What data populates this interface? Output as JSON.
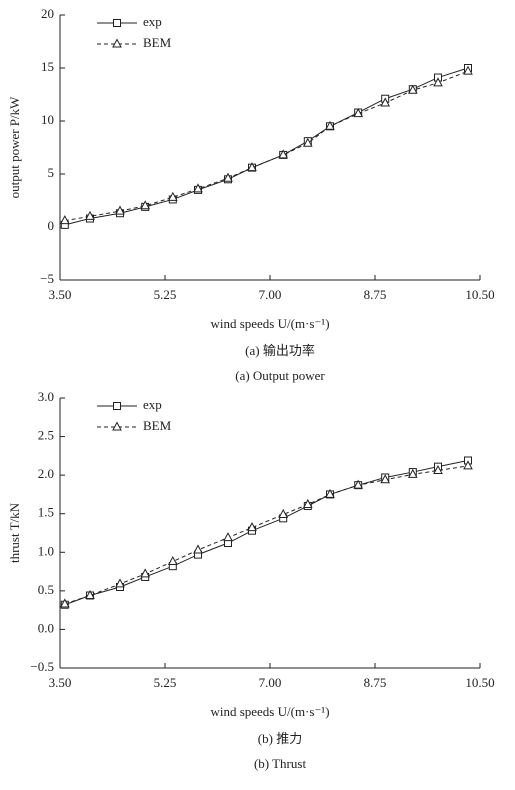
{
  "chart_data": [
    {
      "type": "line",
      "xlabel": "wind speeds U/(m·s⁻¹)",
      "ylabel": "output power P/kW",
      "caption_cn": "(a) 输出功率",
      "caption_en": "(a)  Output power",
      "x": [
        3.58,
        4.0,
        4.5,
        4.92,
        5.38,
        5.8,
        6.3,
        6.7,
        7.22,
        7.63,
        8.0,
        8.47,
        8.92,
        9.38,
        9.8,
        10.3
      ],
      "series": [
        {
          "name": "exp",
          "color": "#222222",
          "line_style": "solid",
          "marker": "square",
          "values": [
            0.2,
            0.8,
            1.3,
            1.9,
            2.6,
            3.5,
            4.5,
            5.6,
            6.8,
            8.1,
            9.5,
            10.8,
            12.1,
            13.0,
            14.1,
            15.0
          ]
        },
        {
          "name": "BEM",
          "color": "#222222",
          "line_style": "dashed",
          "marker": "triangle",
          "values": [
            0.6,
            1.0,
            1.5,
            2.0,
            2.8,
            3.6,
            4.6,
            5.6,
            6.8,
            7.9,
            9.5,
            10.7,
            11.7,
            12.9,
            13.6,
            14.7
          ]
        }
      ],
      "xlim": [
        3.5,
        10.5
      ],
      "xticks": [
        {
          "value": 3.5,
          "label": "3.50"
        },
        5.25,
        {
          "value": 7,
          "label": "7.00"
        },
        8.75,
        {
          "value": 10.5,
          "label": "10.50"
        }
      ],
      "ylim": [
        -5,
        20
      ],
      "yticks": [
        {
          "value": -5,
          "label": "−5"
        },
        0,
        5,
        10,
        15,
        20
      ],
      "legend": "upper-left"
    },
    {
      "type": "line",
      "xlabel": "wind speeds U/(m·s⁻¹)",
      "ylabel": "thrust T/kN",
      "caption_cn": "(b) 推力",
      "caption_en": "(b)  Thrust",
      "x": [
        3.58,
        4.0,
        4.5,
        4.92,
        5.38,
        5.8,
        6.3,
        6.7,
        7.22,
        7.63,
        8.0,
        8.47,
        8.92,
        9.38,
        9.8,
        10.3
      ],
      "series": [
        {
          "name": "exp",
          "color": "#222222",
          "line_style": "solid",
          "marker": "square",
          "values": [
            0.32,
            0.44,
            0.55,
            0.68,
            0.82,
            0.97,
            1.12,
            1.28,
            1.44,
            1.6,
            1.75,
            1.87,
            1.97,
            2.04,
            2.11,
            2.19
          ]
        },
        {
          "name": "BEM",
          "color": "#222222",
          "line_style": "dashed",
          "marker": "triangle",
          "values": [
            0.33,
            0.44,
            0.59,
            0.72,
            0.88,
            1.03,
            1.19,
            1.32,
            1.49,
            1.62,
            1.75,
            1.87,
            1.94,
            2.01,
            2.06,
            2.12
          ]
        }
      ],
      "xlim": [
        3.5,
        10.5
      ],
      "xticks": [
        {
          "value": 3.5,
          "label": "3.50"
        },
        5.25,
        {
          "value": 7,
          "label": "7.00"
        },
        8.75,
        {
          "value": 10.5,
          "label": "10.50"
        }
      ],
      "ylim": [
        -0.5,
        3
      ],
      "yticks": [
        {
          "value": -0.5,
          "label": "−0.5"
        },
        {
          "value": 0,
          "label": "0.0"
        },
        0.5,
        {
          "value": 1,
          "label": "1.0"
        },
        1.5,
        {
          "value": 2,
          "label": "2.0"
        },
        2.5,
        {
          "value": 3,
          "label": "3.0"
        }
      ],
      "legend": "upper-left"
    }
  ]
}
